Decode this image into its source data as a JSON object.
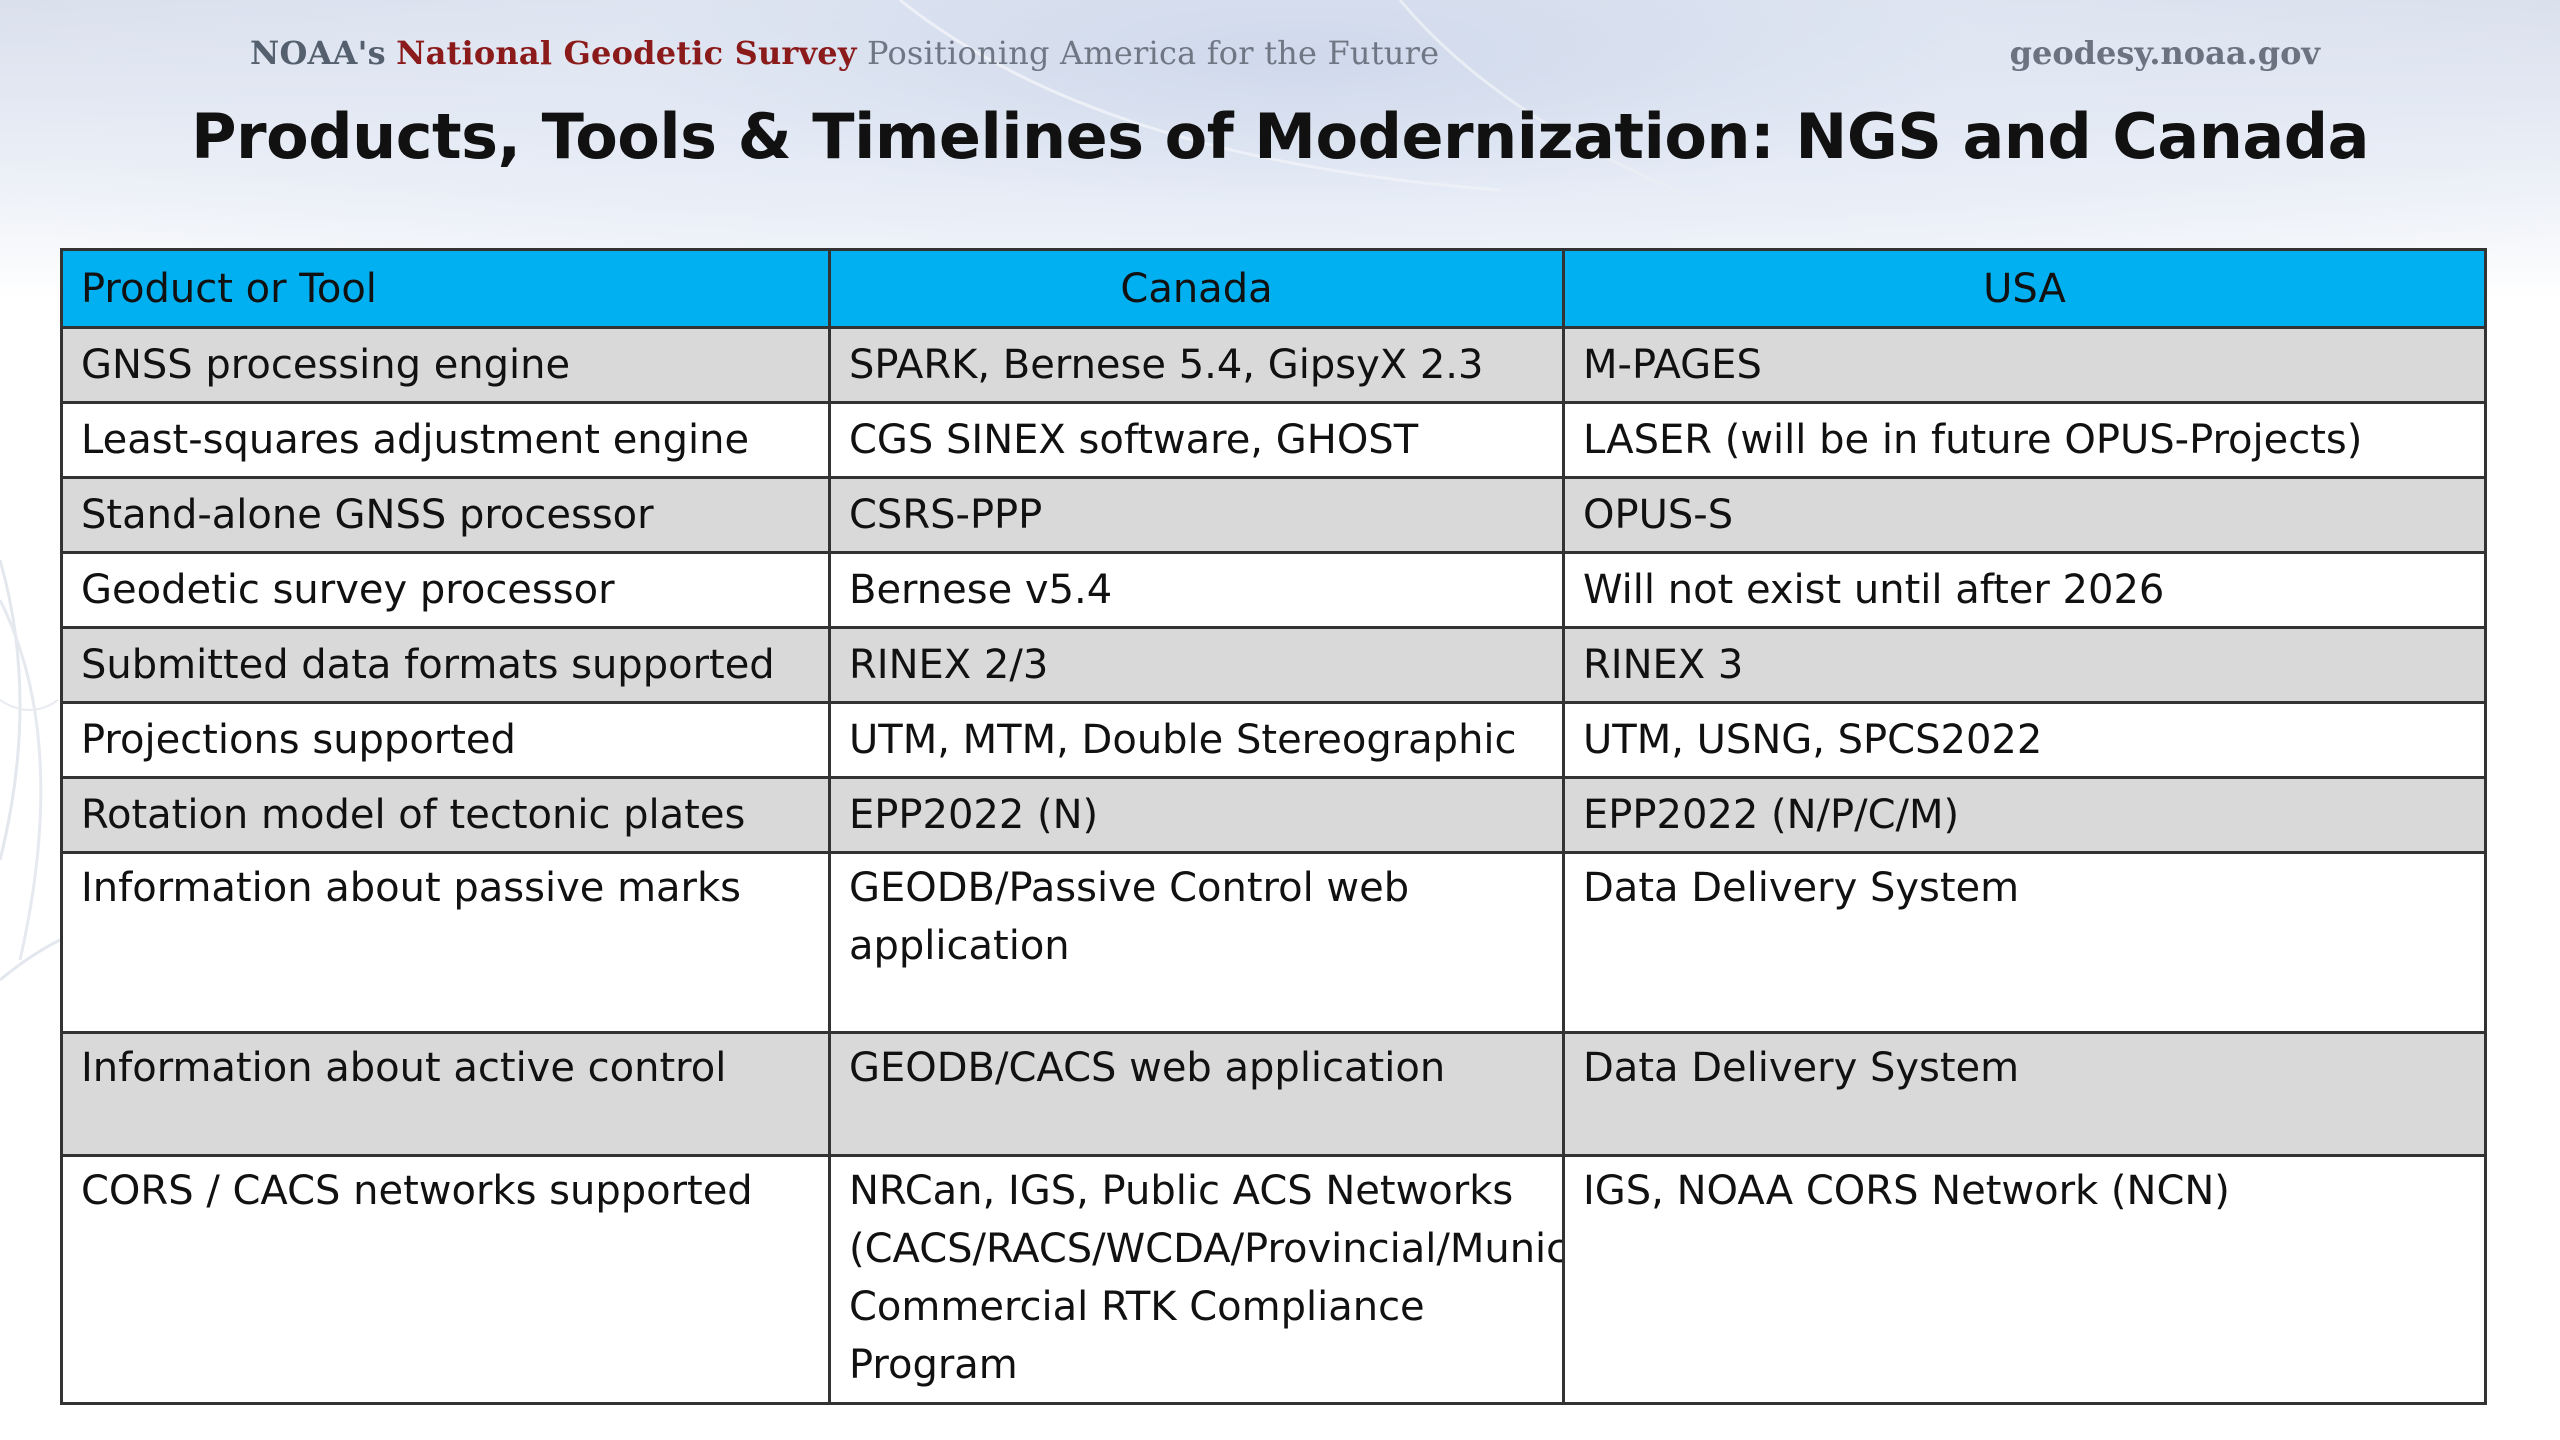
{
  "header": {
    "agency_prefix": "NOAA's",
    "agency_name": "National Geodetic Survey",
    "tagline": "Positioning America for the Future",
    "site_url": "geodesy.noaa.gov"
  },
  "title": "Products, Tools & Timelines of Modernization:  NGS and Canada",
  "table": {
    "columns": [
      "Product or Tool",
      "Canada",
      "USA"
    ],
    "rows": [
      {
        "product": "GNSS processing engine",
        "canada": "SPARK, Bernese 5.4, GipsyX 2.3",
        "usa": "M-PAGES"
      },
      {
        "product": "Least-squares adjustment engine",
        "canada": "CGS SINEX software, GHOST",
        "usa": "LASER (will be in future OPUS-Projects)"
      },
      {
        "product": "Stand-alone GNSS processor",
        "canada": "CSRS-PPP",
        "usa": "OPUS-S"
      },
      {
        "product": "Geodetic survey processor",
        "canada": "Bernese v5.4",
        "usa": "Will not exist until after 2026"
      },
      {
        "product": "Submitted data formats supported",
        "canada": "RINEX 2/3",
        "usa": "RINEX 3"
      },
      {
        "product": "Projections supported",
        "canada": "UTM, MTM, Double Stereographic",
        "usa": "UTM, USNG, SPCS2022"
      },
      {
        "product": "Rotation model of tectonic plates",
        "canada": "EPP2022 (N)",
        "usa": "EPP2022 (N/P/C/M)"
      },
      {
        "product": "Information about passive marks",
        "canada": "GEODB/Passive Control web application",
        "usa": "Data Delivery System"
      },
      {
        "product": "Information about active control",
        "canada": "GEODB/CACS web application",
        "usa": "Data Delivery System"
      },
      {
        "product": "CORS / CACS networks supported",
        "canada": "NRCan, IGS, Public ACS Networks (CACS/RACS/WCDA/Provincial/Municipal), Commercial RTK Compliance Program",
        "usa": "IGS, NOAA CORS Network (NCN)"
      }
    ]
  },
  "colors": {
    "header_fill": "#00b0f0",
    "row_shade": "#d9d9d9",
    "agency_name": "#8b1a1a",
    "border": "#333333"
  }
}
